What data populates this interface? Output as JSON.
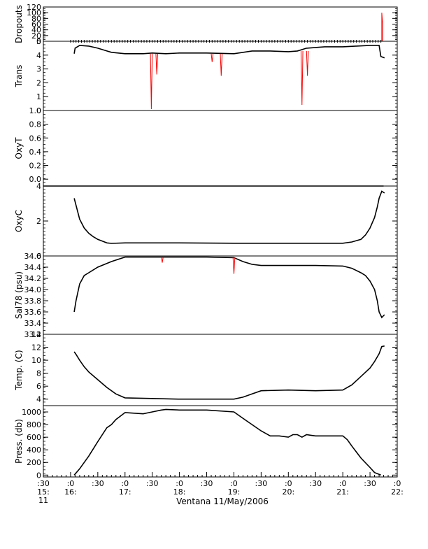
{
  "chart_data": {
    "type": "line",
    "title": "",
    "xlabel": "Ventana 11/May/2006",
    "x_range": [
      "15:30",
      "22:00"
    ],
    "x_ticks": [
      {
        "t": "15:30",
        "l1": ":30",
        "l2": "15:",
        "l3": "11"
      },
      {
        "t": "16:00",
        "l1": ":0",
        "l2": "16:",
        "l3": ""
      },
      {
        "t": "16:30",
        "l1": ":30",
        "l2": "",
        "l3": ""
      },
      {
        "t": "17:00",
        "l1": ":0",
        "l2": "17:",
        "l3": ""
      },
      {
        "t": "17:30",
        "l1": ":30",
        "l2": "",
        "l3": ""
      },
      {
        "t": "18:00",
        "l1": ":0",
        "l2": "18:",
        "l3": ""
      },
      {
        "t": "18:30",
        "l1": ":30",
        "l2": "",
        "l3": ""
      },
      {
        "t": "19:00",
        "l1": ":0",
        "l2": "19:",
        "l3": ""
      },
      {
        "t": "19:30",
        "l1": ":30",
        "l2": "",
        "l3": ""
      },
      {
        "t": "20:00",
        "l1": ":0",
        "l2": "20:",
        "l3": ""
      },
      {
        "t": "20:30",
        "l1": ":30",
        "l2": "",
        "l3": ""
      },
      {
        "t": "21:00",
        "l1": ":0",
        "l2": "21:",
        "l3": ""
      },
      {
        "t": "21:30",
        "l1": ":30",
        "l2": "",
        "l3": ""
      },
      {
        "t": "22:00",
        "l1": ":0",
        "l2": "22:",
        "l3": ""
      }
    ],
    "colors": {
      "raw": "#ff0000",
      "smoothed": "#000000",
      "axes": "#000000"
    },
    "panels": [
      {
        "name": "dropouts",
        "ylabel": "Dropouts",
        "ylim": [
          0,
          120
        ],
        "ticks": [
          "0",
          "20",
          "40",
          "60",
          "80",
          "100",
          "120"
        ],
        "series": [
          {
            "x": [
              "16:00",
              "21:42"
            ],
            "y": [
              0,
              0
            ],
            "style": "dotted-marker"
          },
          {
            "x": [
              "21:43",
              "21:43",
              "21:44",
              "21:44"
            ],
            "y": [
              0,
              100,
              60,
              0
            ],
            "style": "raw"
          }
        ]
      },
      {
        "name": "trans",
        "ylabel": "Trans",
        "ylim": [
          0,
          5
        ],
        "ticks": [
          "0",
          "1",
          "2",
          "3",
          "4",
          "5"
        ],
        "series": [
          {
            "x": [
              "16:04",
              "16:05",
              "16:10",
              "16:20",
              "16:30",
              "16:40",
              "16:45",
              "17:00",
              "17:20",
              "17:30",
              "17:45",
              "18:00",
              "18:30",
              "19:00",
              "19:20",
              "19:40",
              "20:00",
              "20:10",
              "20:20",
              "20:40",
              "21:00",
              "21:15",
              "21:30",
              "21:40",
              "21:42",
              "21:46"
            ],
            "y": [
              4.1,
              4.5,
              4.7,
              4.65,
              4.5,
              4.3,
              4.2,
              4.1,
              4.1,
              4.15,
              4.1,
              4.15,
              4.15,
              4.1,
              4.3,
              4.3,
              4.25,
              4.3,
              4.5,
              4.6,
              4.6,
              4.65,
              4.7,
              4.7,
              3.9,
              3.8
            ],
            "style": "smoothed"
          },
          {
            "x": [
              "17:28",
              "17:29",
              "17:30",
              "17:34",
              "17:35",
              "17:36",
              "18:35",
              "18:36",
              "18:37",
              "18:45",
              "18:46",
              "18:47",
              "20:14",
              "20:15",
              "20:16",
              "20:20",
              "20:21",
              "20:22"
            ],
            "y": [
              4.1,
              0.1,
              4.1,
              4.1,
              2.6,
              4.1,
              4.1,
              3.5,
              4.1,
              4.1,
              2.5,
              4.1,
              4.3,
              0.4,
              4.3,
              4.3,
              2.5,
              4.3
            ],
            "style": "raw-spikes"
          }
        ]
      },
      {
        "name": "oxyt",
        "ylabel": "OxyT",
        "ylim": [
          -0.1,
          1.0
        ],
        "ticks": [
          "0.0",
          "0.2",
          "0.4",
          "0.6",
          "0.8",
          "1.0"
        ],
        "series": []
      },
      {
        "name": "oxyc",
        "ylabel": "OxyC",
        "ylim": [
          0,
          4
        ],
        "ticks": [
          "0",
          "2",
          "4"
        ],
        "series": [
          {
            "x": [
              "15:30",
              "21:45"
            ],
            "y": [
              4.0,
              4.0
            ],
            "style": "smoothed"
          },
          {
            "x": [
              "16:04",
              "16:06",
              "16:10",
              "16:15",
              "16:20",
              "16:25",
              "16:30",
              "16:35",
              "16:40",
              "16:45",
              "17:00",
              "18:00",
              "19:00",
              "20:00",
              "21:00",
              "21:10",
              "21:20",
              "21:25",
              "21:30",
              "21:35",
              "21:38",
              "21:40",
              "21:43",
              "21:46"
            ],
            "y": [
              3.3,
              2.9,
              2.1,
              1.6,
              1.3,
              1.1,
              0.95,
              0.85,
              0.75,
              0.72,
              0.75,
              0.75,
              0.73,
              0.73,
              0.73,
              0.8,
              0.95,
              1.2,
              1.6,
              2.2,
              2.8,
              3.3,
              3.7,
              3.6
            ],
            "style": "smoothed"
          }
        ]
      },
      {
        "name": "sal",
        "ylabel": "Sal78 (psu)",
        "ylim": [
          33.2,
          34.6
        ],
        "ticks": [
          "33.2",
          "33.4",
          "33.6",
          "33.8",
          "34.0",
          "34.2",
          "34.4",
          "34.6"
        ],
        "series": [
          {
            "x": [
              "16:04",
              "16:06",
              "16:10",
              "16:15",
              "16:20",
              "16:30",
              "16:45",
              "17:00",
              "17:30",
              "18:00",
              "18:30",
              "19:00",
              "19:10",
              "19:20",
              "19:30",
              "20:00",
              "20:30",
              "21:00",
              "21:10",
              "21:20",
              "21:25",
              "21:30",
              "21:35",
              "21:38",
              "21:40",
              "21:43",
              "21:46"
            ],
            "y": [
              33.6,
              33.8,
              34.1,
              34.25,
              34.3,
              34.4,
              34.5,
              34.58,
              34.58,
              34.58,
              34.58,
              34.57,
              34.5,
              34.45,
              34.43,
              34.43,
              34.43,
              34.42,
              34.38,
              34.3,
              34.25,
              34.15,
              34.0,
              33.8,
              33.6,
              33.5,
              33.55
            ],
            "style": "smoothed"
          },
          {
            "x": [
              "18:59",
              "19:00",
              "19:01",
              "17:40",
              "17:41",
              "17:42"
            ],
            "y": [
              34.57,
              34.28,
              34.57,
              34.58,
              34.48,
              34.58
            ],
            "style": "raw-spikes"
          }
        ]
      },
      {
        "name": "temp",
        "ylabel": "Temp. (C)",
        "ylim": [
          3,
          14
        ],
        "ticks": [
          "4",
          "6",
          "8",
          "10",
          "12",
          "14"
        ],
        "series": [
          {
            "x": [
              "16:04",
              "16:06",
              "16:10",
              "16:15",
              "16:20",
              "16:30",
              "16:40",
              "16:50",
              "17:00",
              "17:30",
              "18:00",
              "18:30",
              "19:00",
              "19:10",
              "19:20",
              "19:30",
              "20:00",
              "20:30",
              "21:00",
              "21:10",
              "21:20",
              "21:30",
              "21:35",
              "21:40",
              "21:43",
              "21:46"
            ],
            "y": [
              11.3,
              10.9,
              10.0,
              9.0,
              8.2,
              7.0,
              5.8,
              4.8,
              4.2,
              4.1,
              4.0,
              4.0,
              4.0,
              4.3,
              4.8,
              5.3,
              5.4,
              5.3,
              5.4,
              6.2,
              7.5,
              8.8,
              9.8,
              11.0,
              12.1,
              12.2
            ],
            "style": "smoothed"
          }
        ]
      },
      {
        "name": "press",
        "ylabel": "Press. (db)",
        "ylim": [
          -30,
          1100
        ],
        "ticks": [
          "0",
          "200",
          "400",
          "600",
          "800",
          "1000"
        ],
        "series": [
          {
            "x": [
              "16:04",
              "16:10",
              "16:20",
              "16:30",
              "16:40",
              "16:45",
              "16:50",
              "17:00",
              "17:20",
              "17:30",
              "17:40",
              "17:45",
              "18:00",
              "18:30",
              "19:00",
              "19:10",
              "19:20",
              "19:30",
              "19:40",
              "19:50",
              "20:00",
              "20:05",
              "20:10",
              "20:15",
              "20:20",
              "20:25",
              "20:30",
              "21:00",
              "21:05",
              "21:10",
              "21:20",
              "21:30",
              "21:35",
              "21:42"
            ],
            "y": [
              0,
              100,
              300,
              530,
              750,
              800,
              880,
              990,
              970,
              1000,
              1030,
              1040,
              1030,
              1030,
              1000,
              900,
              800,
              700,
              620,
              620,
              600,
              640,
              640,
              600,
              640,
              630,
              620,
              620,
              560,
              460,
              270,
              120,
              40,
              0
            ],
            "style": "smoothed"
          }
        ]
      }
    ]
  }
}
